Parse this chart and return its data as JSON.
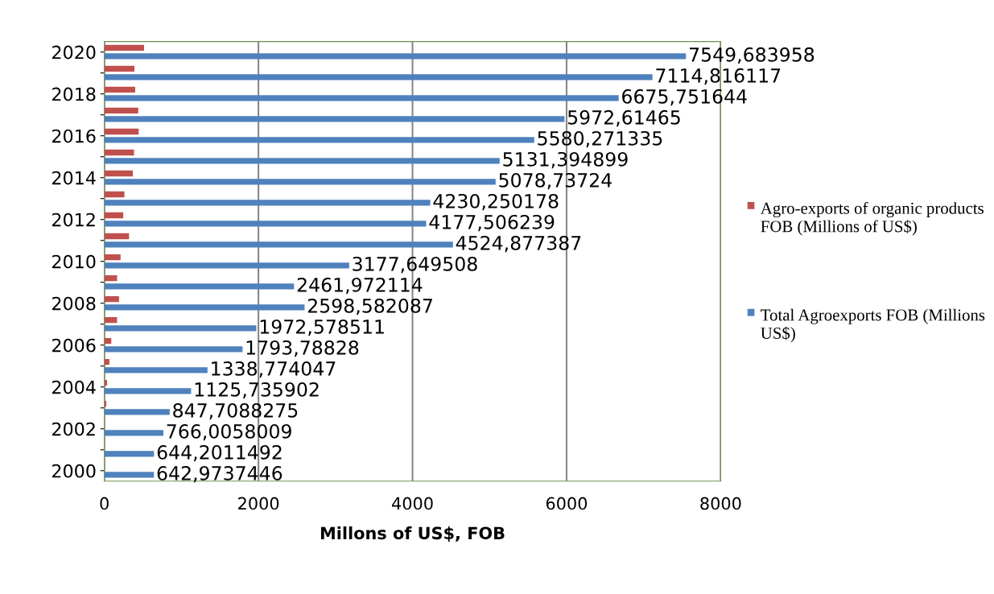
{
  "chart_data": {
    "type": "bar",
    "orientation": "horizontal",
    "xlabel": "Millons of US$, FOB",
    "categories": [
      "2020",
      null,
      "2018",
      null,
      "2016",
      null,
      "2014",
      null,
      "2012",
      null,
      "2010",
      null,
      "2008",
      null,
      "2006",
      null,
      "2004",
      null,
      "2002",
      null,
      "2000"
    ],
    "series": [
      {
        "name": "Agro-exports of organic products FOB (Millions of US$)",
        "color": "#c0504d",
        "values": [
          515,
          390,
          400,
          440,
          445,
          385,
          370,
          260,
          245,
          320,
          210,
          165,
          190,
          165,
          90,
          65,
          35,
          25,
          null,
          null,
          null
        ]
      },
      {
        "name": "Total Agroexports FOB (Millions US$)",
        "color": "#4f81bd",
        "values": [
          7549.683958,
          7114.816117,
          6675.751644,
          5972.61465,
          5580.271335,
          5131.394899,
          5078.73724,
          4230.250178,
          4177.506239,
          4524.877387,
          3177.649508,
          2461.972114,
          2598.582087,
          1972.578511,
          1793.78828,
          1338.774047,
          1125.735902,
          847.7088275,
          766.0058009,
          644.2011492,
          642.9737446
        ],
        "value_labels": [
          "7549,683958",
          "7114,816117",
          "6675,751644",
          "5972,61465",
          "5580,271335",
          "5131,394899",
          "5078,73724",
          "4230,250178",
          "4177,506239",
          "4524,877387",
          "3177,649508",
          "2461,972114",
          "2598,582087",
          "1972,578511",
          "1793,78828",
          "1338,774047",
          "1125,735902",
          "847,7088275",
          "766,0058009",
          "644,2011492",
          "642,9737446"
        ]
      }
    ],
    "xlim": [
      0,
      8000
    ],
    "xticks": [
      0,
      2000,
      4000,
      6000,
      8000
    ],
    "grid": "x",
    "legend": "right"
  }
}
